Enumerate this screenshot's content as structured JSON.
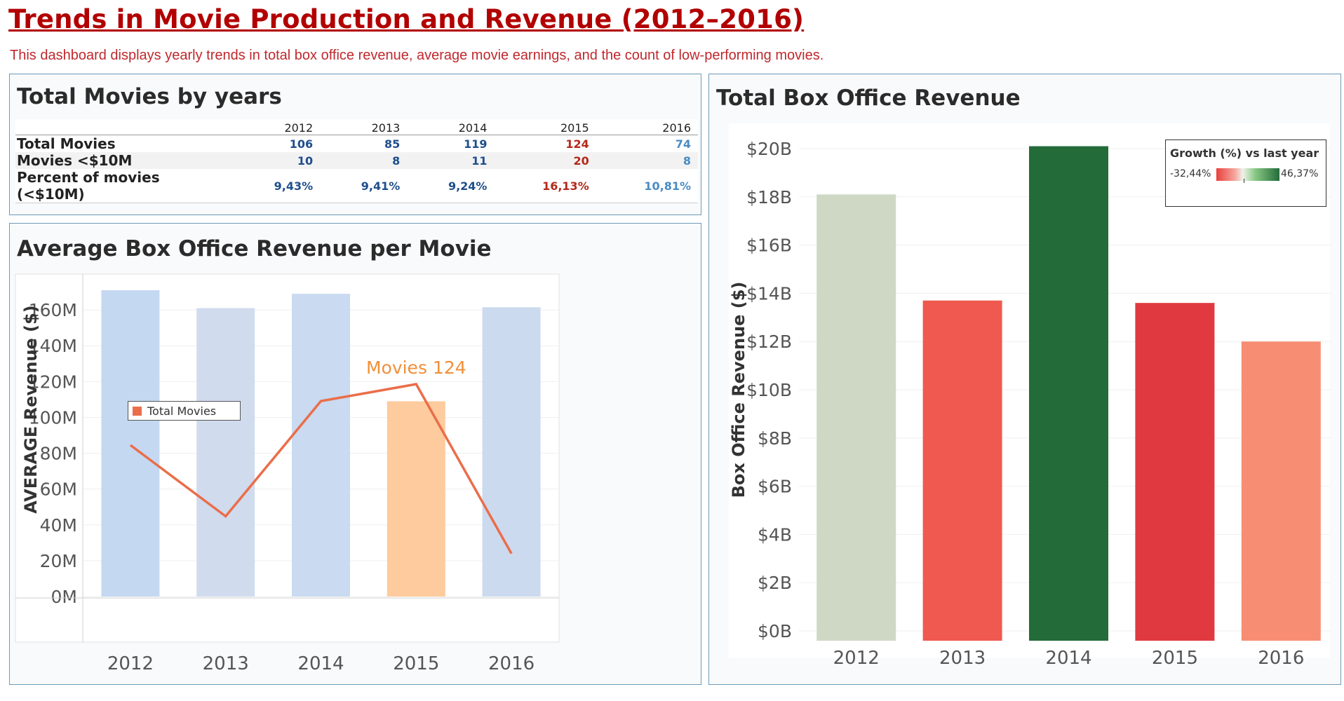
{
  "dashboard": {
    "title": "Trends in Movie Production and Revenue (2012–2016)",
    "subtitle": "This dashboard displays yearly trends in total box office revenue, average movie earnings, and the count of low-performing movies."
  },
  "table_panel": {
    "title": "Total Movies by years",
    "years": [
      "2012",
      "2013",
      "2014",
      "2015",
      "2016"
    ],
    "rows": [
      {
        "label": "Total Movies",
        "values": [
          "106",
          "85",
          "119",
          "124",
          "74"
        ]
      },
      {
        "label": "Movies <$10M",
        "values": [
          "10",
          "8",
          "11",
          "20",
          "8"
        ]
      },
      {
        "label": "Percent of movies (<$10M)",
        "values": [
          "9,43%",
          "9,41%",
          "9,24%",
          "16,13%",
          "10,81%"
        ]
      }
    ],
    "colors": {
      "default_blue": "#1f4e8c",
      "highlight_red": "#b22a1a",
      "light_blue": "#4a8cc4"
    }
  },
  "avg_panel": {
    "title": "Average Box Office Revenue per Movie",
    "legend_label": "Total Movies",
    "annotation": "Movies 124"
  },
  "total_panel": {
    "title": "Total Box Office Revenue",
    "legend": {
      "title": "Growth (%) vs last year",
      "min": "-32,44%",
      "max": "46,37%"
    }
  },
  "chart_data": [
    {
      "type": "bar",
      "title": "Average Box Office Revenue per Movie",
      "ylabel": "AVERAGE Revenue ($)",
      "categories": [
        "2012",
        "2013",
        "2014",
        "2015",
        "2016"
      ],
      "series": [
        {
          "values": [
            171000000,
            161000000,
            169000000,
            109000000,
            161500000
          ]
        }
      ],
      "highlight_category": "2015",
      "bar_colors": [
        "#c5d8f1",
        "#d0dbee",
        "#c9daf1",
        "#fdcb9d",
        "#ccdaef"
      ],
      "yticks": [
        "0M",
        "20M",
        "40M",
        "60M",
        "80M",
        "100M",
        "120M",
        "140M",
        "160M"
      ],
      "ylim": [
        0,
        180000000
      ],
      "overlay_line": {
        "name": "Total Movies",
        "values": [
          106,
          85,
          119,
          124,
          74
        ],
        "color": "#ea6e4a"
      },
      "annotation": {
        "category": "2015",
        "text": "Movies 124"
      }
    },
    {
      "type": "bar",
      "title": "Total Box Office Revenue",
      "ylabel": "Box Office Revenue ($)",
      "categories": [
        "2012",
        "2013",
        "2014",
        "2015",
        "2016"
      ],
      "values": [
        18100000000,
        13700000000,
        20100000000,
        13600000000,
        12000000000
      ],
      "yticks": [
        "$0B",
        "$2B",
        "$4B",
        "$6B",
        "$8B",
        "$10B",
        "$12B",
        "$14B",
        "$16B",
        "$18B",
        "$20B"
      ],
      "ylim": [
        0,
        20000000000
      ],
      "bar_colors": [
        "#cfd8c4",
        "#f0594f",
        "#246b3a",
        "#e03a40",
        "#f78e74"
      ],
      "color_legend": {
        "title": "Growth (%) vs last year",
        "min": "-32,44%",
        "max": "46,37%"
      }
    }
  ]
}
